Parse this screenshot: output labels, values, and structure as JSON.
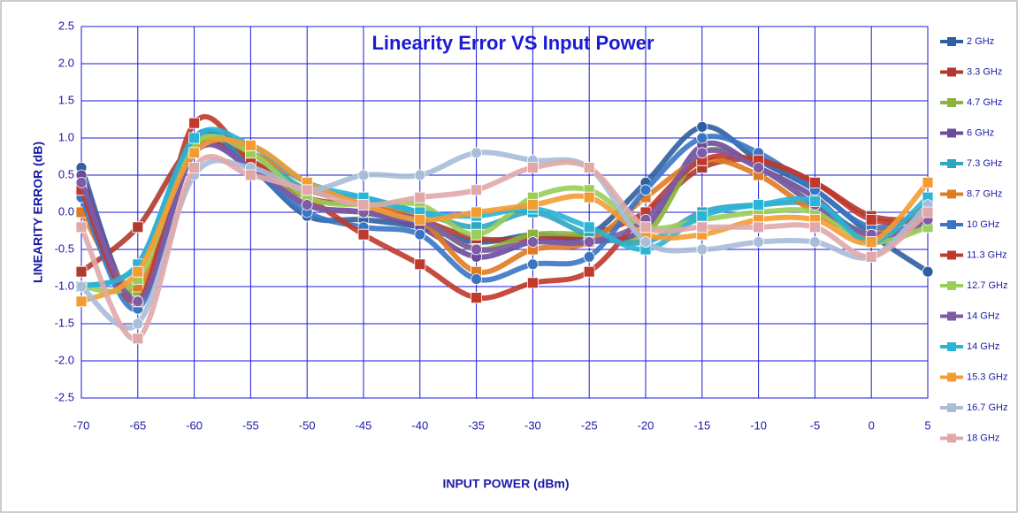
{
  "chart_data": {
    "type": "line",
    "title": "Linearity Error VS Input Power",
    "x_label": "INPUT POWER (dBm)",
    "y_label": "LINEARITY ERROR (dB)",
    "x": [
      -70,
      -65,
      -60,
      -55,
      -50,
      -45,
      -40,
      -35,
      -30,
      -25,
      -20,
      -15,
      -10,
      -5,
      0,
      5
    ],
    "xlim": [
      -70,
      5
    ],
    "xticks": [
      -70,
      -65,
      -60,
      -55,
      -50,
      -45,
      -40,
      -35,
      -30,
      -25,
      -20,
      -15,
      -10,
      -5,
      0,
      5
    ],
    "ylim": [
      -2.5,
      2.5
    ],
    "yticks": [
      2.5,
      {
        "value": 2,
        "label": "2.0"
      },
      1.5,
      {
        "value": 1,
        "label": "1.0"
      },
      0.5,
      {
        "value": 0,
        "label": "0.0"
      },
      -0.5,
      {
        "value": -1,
        "label": "-1.0"
      },
      -1.5,
      {
        "value": -2,
        "label": "-2.0"
      },
      -2.5
    ],
    "grid": true,
    "legend": "right",
    "series": [
      {
        "name": "2 GHz",
        "color": "#2e5f9e",
        "values": [
          0.6,
          -1.2,
          0.9,
          0.6,
          -0.05,
          -0.1,
          -0.2,
          -0.4,
          -0.3,
          -0.3,
          0.4,
          1.15,
          0.7,
          0.3,
          -0.3,
          -0.8
        ]
      },
      {
        "name": "3.3 GHz",
        "color": "#b03a2e",
        "values": [
          -0.8,
          -0.2,
          0.9,
          0.7,
          0.2,
          0.1,
          -0.1,
          -0.35,
          -0.35,
          -0.3,
          0.0,
          0.6,
          0.7,
          0.4,
          -0.05,
          -0.1
        ]
      },
      {
        "name": "4.7 GHz",
        "color": "#8db33a",
        "values": [
          0.3,
          -1.1,
          0.9,
          0.7,
          0.1,
          0.0,
          -0.1,
          -0.5,
          -0.3,
          -0.3,
          -0.3,
          0.8,
          0.6,
          0.1,
          -0.3,
          -0.2
        ]
      },
      {
        "name": "6 GHz",
        "color": "#6a4c9c",
        "values": [
          0.5,
          -1.2,
          0.8,
          0.6,
          0.1,
          0.0,
          -0.2,
          -0.6,
          -0.4,
          -0.4,
          -0.2,
          0.9,
          0.6,
          0.2,
          -0.4,
          -0.1
        ]
      },
      {
        "name": "7.3 GHz",
        "color": "#2fa5c0",
        "values": [
          -1.0,
          -0.7,
          1.0,
          0.8,
          0.3,
          0.2,
          0.0,
          -0.2,
          0.0,
          -0.3,
          -0.4,
          0.0,
          0.1,
          0.1,
          -0.3,
          0.1
        ]
      },
      {
        "name": "8.7 GHz",
        "color": "#e07b24",
        "values": [
          0.0,
          -1.0,
          0.9,
          0.8,
          0.4,
          0.1,
          -0.1,
          -0.8,
          -0.5,
          -0.4,
          0.2,
          0.7,
          0.5,
          0.0,
          -0.3,
          0.1
        ]
      },
      {
        "name": "10 GHz",
        "color": "#3a75c4",
        "values": [
          0.2,
          -1.3,
          1.0,
          0.6,
          0.0,
          -0.2,
          -0.3,
          -0.9,
          -0.7,
          -0.6,
          0.3,
          1.0,
          0.8,
          0.3,
          -0.2,
          0.0
        ]
      },
      {
        "name": "11.3 GHz",
        "color": "#c0392b",
        "values": [
          0.3,
          -1.2,
          1.2,
          0.7,
          0.2,
          -0.3,
          -0.7,
          -1.15,
          -0.95,
          -0.8,
          0.0,
          0.7,
          0.7,
          0.4,
          -0.1,
          -0.1
        ]
      },
      {
        "name": "12.7 GHz",
        "color": "#9acd5a",
        "values": [
          -1.0,
          -0.9,
          0.9,
          0.8,
          0.2,
          0.1,
          0.1,
          -0.3,
          0.2,
          0.3,
          -0.2,
          -0.1,
          0.0,
          0.0,
          -0.4,
          -0.2
        ]
      },
      {
        "name": "14 GHz",
        "color": "#7d5ba6",
        "values": [
          0.4,
          -1.2,
          0.8,
          0.6,
          0.1,
          0.0,
          -0.1,
          -0.5,
          -0.4,
          -0.4,
          -0.1,
          0.8,
          0.6,
          0.1,
          -0.3,
          -0.1
        ]
      },
      {
        "name": "14 GHz",
        "color": "#2ab4d6",
        "values": [
          -1.0,
          -0.7,
          1.0,
          0.9,
          0.4,
          0.2,
          0.0,
          -0.05,
          0.05,
          -0.2,
          -0.5,
          -0.05,
          0.1,
          0.15,
          -0.4,
          0.2
        ]
      },
      {
        "name": "15.3 GHz",
        "color": "#f39c34",
        "values": [
          -1.2,
          -0.8,
          0.8,
          0.9,
          0.4,
          0.1,
          -0.1,
          0.0,
          0.1,
          0.2,
          -0.3,
          -0.3,
          -0.1,
          -0.1,
          -0.4,
          0.4
        ]
      },
      {
        "name": "16.7 GHz",
        "color": "#a9bcd8",
        "values": [
          -1.0,
          -1.5,
          0.5,
          0.6,
          0.3,
          0.5,
          0.5,
          0.8,
          0.7,
          0.6,
          -0.4,
          -0.5,
          -0.4,
          -0.4,
          -0.6,
          0.1
        ]
      },
      {
        "name": "18 GHz",
        "color": "#e0a8a8",
        "values": [
          -0.2,
          -1.7,
          0.6,
          0.5,
          0.3,
          0.1,
          0.2,
          0.3,
          0.6,
          0.6,
          -0.2,
          -0.2,
          -0.2,
          -0.2,
          -0.6,
          0.0
        ]
      }
    ]
  }
}
